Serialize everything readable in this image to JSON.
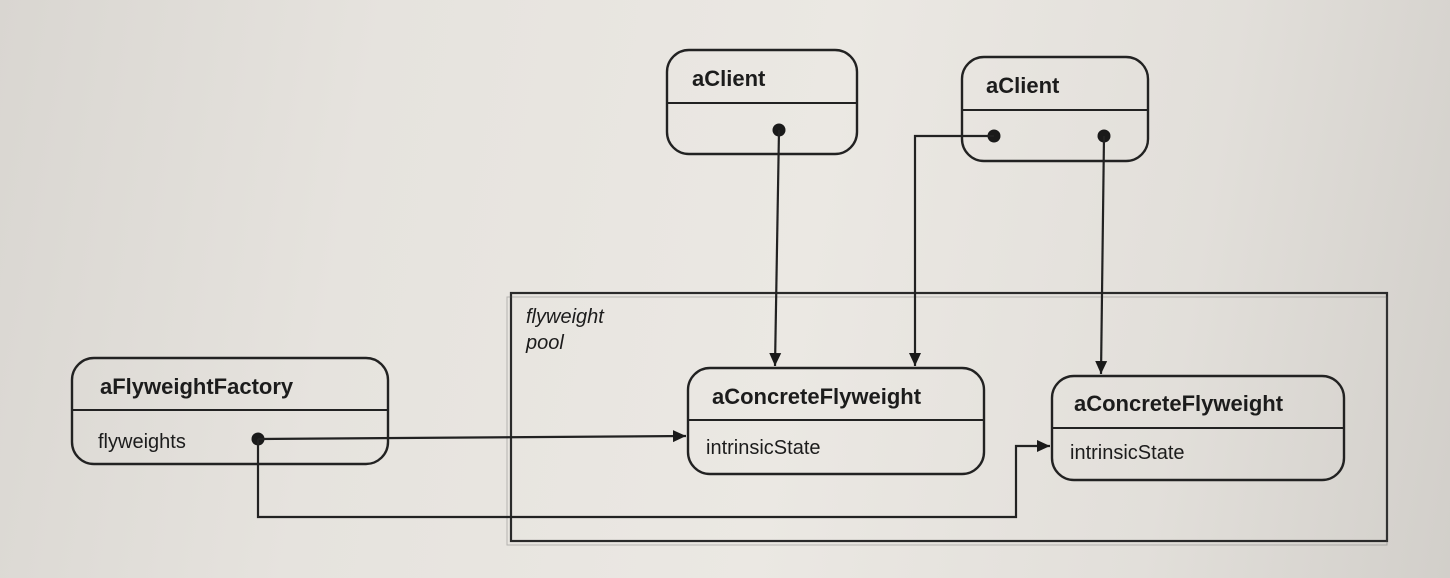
{
  "diagram": {
    "pool": {
      "label_line1": "flyweight",
      "label_line2": "pool"
    },
    "client_1": {
      "title": "aClient"
    },
    "client_2": {
      "title": "aClient"
    },
    "factory": {
      "title": "aFlyweightFactory",
      "attribute": "flyweights"
    },
    "flyweight_1": {
      "title": "aConcreteFlyweight",
      "attribute": "intrinsicState"
    },
    "flyweight_2": {
      "title": "aConcreteFlyweight",
      "attribute": "intrinsicState"
    }
  }
}
